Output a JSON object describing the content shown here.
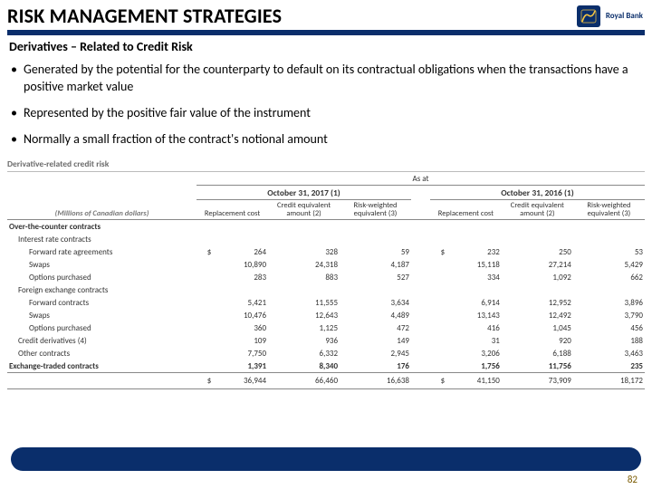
{
  "brand": {
    "name": "Royal Bank"
  },
  "title": "RISK MANAGEMENT STRATEGIES",
  "subtitle": "Derivatives – Related to Credit Risk",
  "bullets": [
    "Generated by the potential for the counterparty to default on its contractual obligations when the transactions have a positive market value",
    "Represented by the positive fair value of the instrument",
    "Normally a small fraction of the contract's notional amount"
  ],
  "table": {
    "title": "Derivative-related credit risk",
    "asat": "As at",
    "unit": "(Millions of Canadian dollars)",
    "periods": [
      {
        "date": "October 31, 2017 (1)"
      },
      {
        "date": "October 31, 2016 (1)"
      }
    ],
    "col_hdrs": [
      "Replacement cost",
      "Credit equivalent amount (2)",
      "Risk-weighted equivalent (3)"
    ],
    "rows": [
      {
        "label": "Over-the-counter contracts",
        "section": true
      },
      {
        "label": "Interest rate contracts",
        "indent": 1
      },
      {
        "label": "Forward rate agreements",
        "indent": 2,
        "a": [
          "264",
          "328",
          "59"
        ],
        "b": [
          "232",
          "250",
          "53"
        ]
      },
      {
        "label": "Swaps",
        "indent": 2,
        "a": [
          "10,890",
          "24,318",
          "4,187"
        ],
        "b": [
          "15,118",
          "27,214",
          "5,429"
        ]
      },
      {
        "label": "Options purchased",
        "indent": 2,
        "a": [
          "283",
          "883",
          "527"
        ],
        "b": [
          "334",
          "1,092",
          "662"
        ]
      },
      {
        "label": "Foreign exchange contracts",
        "indent": 1
      },
      {
        "label": "Forward contracts",
        "indent": 2,
        "a": [
          "5,421",
          "11,555",
          "3,634"
        ],
        "b": [
          "6,914",
          "12,952",
          "3,896"
        ]
      },
      {
        "label": "Swaps",
        "indent": 2,
        "a": [
          "10,476",
          "12,643",
          "4,489"
        ],
        "b": [
          "13,143",
          "12,492",
          "3,790"
        ]
      },
      {
        "label": "Options purchased",
        "indent": 2,
        "a": [
          "360",
          "1,125",
          "472"
        ],
        "b": [
          "416",
          "1,045",
          "456"
        ]
      },
      {
        "label": "Credit derivatives (4)",
        "indent": 1,
        "a": [
          "109",
          "936",
          "149"
        ],
        "b": [
          "31",
          "920",
          "188"
        ]
      },
      {
        "label": "Other contracts",
        "indent": 1,
        "a": [
          "7,750",
          "6,332",
          "2,945"
        ],
        "b": [
          "3,206",
          "6,188",
          "3,463"
        ]
      },
      {
        "label": "Exchange-traded contracts",
        "section": true,
        "a": [
          "1,391",
          "8,340",
          "176"
        ],
        "b": [
          "1,756",
          "11,756",
          "235"
        ]
      }
    ],
    "total": {
      "a": [
        "36,944",
        "66,460",
        "16,638"
      ],
      "b": [
        "41,150",
        "73,909",
        "18,172"
      ]
    }
  },
  "page_number": "82",
  "colors": {
    "brand_blue": "#0a2e6b"
  }
}
